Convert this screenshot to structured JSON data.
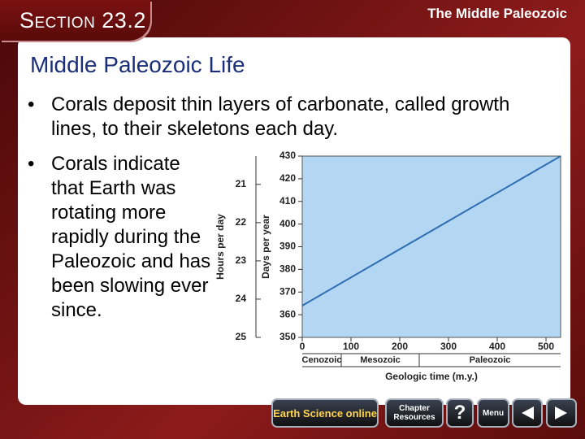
{
  "header": {
    "section": "Section 23.2",
    "topic": "The Middle Paleozoic"
  },
  "title": "Middle Paleozoic Life",
  "bullets": [
    "Corals deposit thin layers of carbonate, called growth lines, to their skeletons each day.",
    "Corals indicate that Earth was rotating more rapidly during the Paleozoic and has been slowing ever since."
  ],
  "chart_data": {
    "type": "line",
    "x": [
      0,
      530
    ],
    "series": [
      {
        "color": "#2f6db3",
        "values": [
          364,
          430
        ]
      }
    ],
    "xlabel": "Geologic time (m.y.)",
    "ylabel": "Days per year",
    "y2label": "Hours per day",
    "xlim": [
      0,
      530
    ],
    "xticks": [
      0,
      100,
      200,
      300,
      400,
      500
    ],
    "ylim": [
      350,
      430
    ],
    "yticks": [
      350,
      360,
      370,
      380,
      390,
      400,
      410,
      420,
      430
    ],
    "y2lim": [
      25,
      20.26
    ],
    "y2ticks": [
      21,
      22,
      23,
      24,
      25
    ],
    "eras": [
      {
        "label": "Cenozoic",
        "start": 0,
        "end": 80
      },
      {
        "label": "Mesozoic",
        "start": 80,
        "end": 240
      },
      {
        "label": "Paleozoic",
        "start": 240,
        "end": 530
      }
    ]
  },
  "nav": {
    "online": "Earth Science online",
    "resources": "Chapter Resources",
    "help": "?",
    "menu": "Menu"
  }
}
